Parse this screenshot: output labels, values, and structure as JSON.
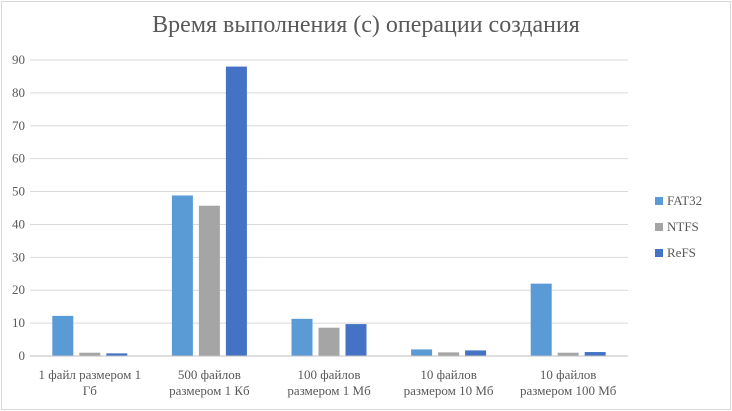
{
  "chart_data": {
    "type": "bar",
    "title": "Время выполнения (с) операции создания",
    "categories": [
      [
        "1 файл размером 1",
        "Гб"
      ],
      [
        "500 файлов",
        "размером 1 Кб"
      ],
      [
        "100 файлов",
        "размером 1 Мб"
      ],
      [
        "10 файлов",
        "размером 10 Мб"
      ],
      [
        "10 файлов",
        "размером 100 Мб"
      ]
    ],
    "series": [
      {
        "name": "FAT32",
        "color": "#5b9bd5",
        "values": [
          12.2,
          48.8,
          11.3,
          2.0,
          22.0
        ]
      },
      {
        "name": "NTFS",
        "color": "#a5a5a5",
        "values": [
          1.0,
          45.7,
          8.6,
          1.1,
          1.0
        ]
      },
      {
        "name": "ReFS",
        "color": "#4472c4",
        "values": [
          0.8,
          88.0,
          9.7,
          1.7,
          1.2
        ]
      }
    ],
    "ylim": [
      0,
      90
    ],
    "yticks": [
      0,
      10,
      20,
      30,
      40,
      50,
      60,
      70,
      80,
      90
    ],
    "grid": true,
    "legend": "right"
  }
}
